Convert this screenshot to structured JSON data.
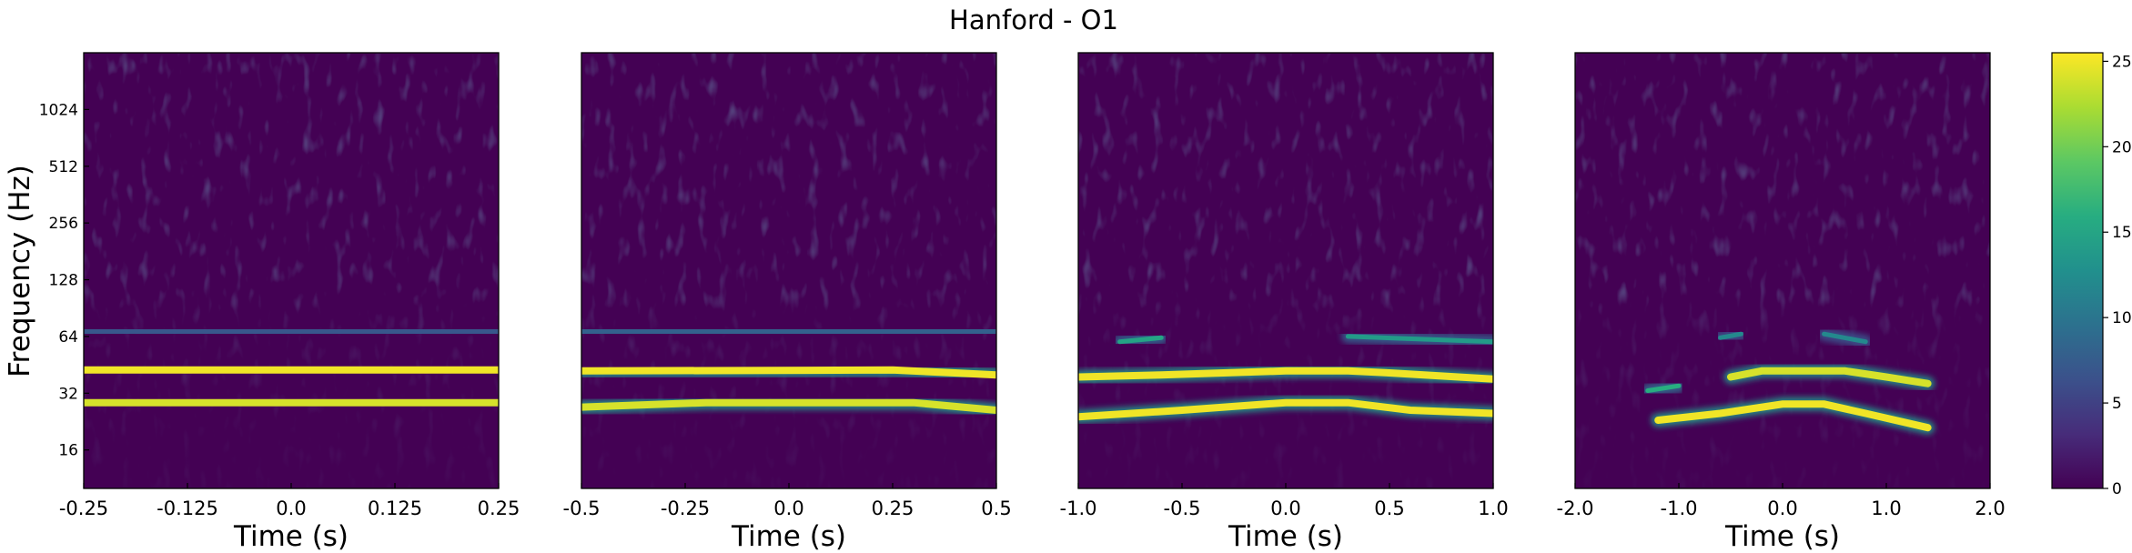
{
  "figure": {
    "title": "Hanford - O1"
  },
  "colormap": [
    "#440154",
    "#472c7a",
    "#3b518b",
    "#2c718e",
    "#21908d",
    "#27ad81",
    "#5cc863",
    "#aadc32",
    "#fde725"
  ],
  "chart_data": {
    "type": "heatmap",
    "title": "Hanford - O1",
    "ylabel": "Frequency (Hz)",
    "yscale": "log2",
    "ylim": [
      10,
      2048
    ],
    "yticks": [
      16,
      32,
      64,
      128,
      256,
      512,
      1024
    ],
    "colorbar": {
      "ticks": [
        0,
        5,
        10,
        15,
        20,
        25
      ],
      "range": [
        0,
        25.5
      ]
    },
    "panels": [
      {
        "xlabel": "Time (s)",
        "xlim": [
          -0.25,
          0.25
        ],
        "xticks": [
          -0.25,
          -0.125,
          0.0,
          0.125,
          0.25
        ],
        "xticklabels": [
          "-0.25",
          "-0.125",
          "0.0",
          "0.125",
          "0.25"
        ],
        "bands": [
          {
            "pts": [
              [
                -0.25,
                42.5
              ],
              [
                0.25,
                42.5
              ]
            ],
            "intensity": 25
          },
          {
            "pts": [
              [
                -0.25,
                28.5
              ],
              [
                0.25,
                28.5
              ]
            ],
            "intensity": 24
          },
          {
            "pts": [
              [
                -0.25,
                68
              ],
              [
                0.25,
                68
              ]
            ],
            "intensity": 7
          }
        ]
      },
      {
        "xlabel": "Time (s)",
        "xlim": [
          -0.5,
          0.5
        ],
        "xticks": [
          -0.5,
          -0.25,
          0.0,
          0.25,
          0.5
        ],
        "xticklabels": [
          "-0.5",
          "-0.25",
          "0.0",
          "0.25",
          "0.5"
        ],
        "bands": [
          {
            "pts": [
              [
                -0.5,
                42
              ],
              [
                0.25,
                42.5
              ],
              [
                0.4,
                41
              ],
              [
                0.5,
                40
              ]
            ],
            "intensity": 25
          },
          {
            "pts": [
              [
                -0.5,
                27
              ],
              [
                -0.2,
                28.5
              ],
              [
                0.3,
                28.5
              ],
              [
                0.5,
                26
              ]
            ],
            "intensity": 24
          },
          {
            "pts": [
              [
                -0.5,
                68
              ],
              [
                0.5,
                68
              ]
            ],
            "intensity": 8
          }
        ]
      },
      {
        "xlabel": "Time (s)",
        "xlim": [
          -1.0,
          1.0
        ],
        "xticks": [
          -1.0,
          -0.5,
          0.0,
          0.5,
          1.0
        ],
        "xticklabels": [
          "-1.0",
          "-0.5",
          "0.0",
          "0.5",
          "1.0"
        ],
        "bands": [
          {
            "pts": [
              [
                -1.0,
                39
              ],
              [
                -0.6,
                40
              ],
              [
                0.0,
                42
              ],
              [
                0.3,
                42
              ],
              [
                0.5,
                41
              ],
              [
                1.0,
                38
              ]
            ],
            "intensity": 25
          },
          {
            "pts": [
              [
                -1.0,
                24
              ],
              [
                -0.5,
                26
              ],
              [
                0.0,
                28.5
              ],
              [
                0.3,
                28.5
              ],
              [
                0.6,
                26
              ],
              [
                1.0,
                25
              ]
            ],
            "intensity": 25
          },
          {
            "pts": [
              [
                -0.8,
                60
              ],
              [
                -0.6,
                63
              ]
            ],
            "intensity": 15
          },
          {
            "pts": [
              [
                0.3,
                64
              ],
              [
                1.0,
                60
              ]
            ],
            "intensity": 14
          }
        ]
      },
      {
        "xlabel": "Time (s)",
        "xlim": [
          -2.0,
          2.0
        ],
        "xticks": [
          -2.0,
          -1.0,
          0.0,
          1.0,
          2.0
        ],
        "xticklabels": [
          "-2.0",
          "-1.0",
          "0.0",
          "1.0",
          "2.0"
        ],
        "bands": [
          {
            "pts": [
              [
                -0.5,
                39
              ],
              [
                -0.2,
                42
              ],
              [
                0.6,
                42
              ],
              [
                1.0,
                39
              ],
              [
                1.4,
                36
              ]
            ],
            "intensity": 24
          },
          {
            "pts": [
              [
                -1.2,
                23
              ],
              [
                -0.6,
                25
              ],
              [
                0.0,
                28
              ],
              [
                0.4,
                28
              ],
              [
                0.8,
                25
              ],
              [
                1.4,
                21
              ]
            ],
            "intensity": 25
          },
          {
            "pts": [
              [
                -1.3,
                33
              ],
              [
                -1.0,
                35
              ]
            ],
            "intensity": 16
          },
          {
            "pts": [
              [
                -0.6,
                63
              ],
              [
                -0.4,
                66
              ]
            ],
            "intensity": 12
          },
          {
            "pts": [
              [
                0.4,
                66
              ],
              [
                0.8,
                60
              ]
            ],
            "intensity": 12
          }
        ]
      }
    ]
  }
}
